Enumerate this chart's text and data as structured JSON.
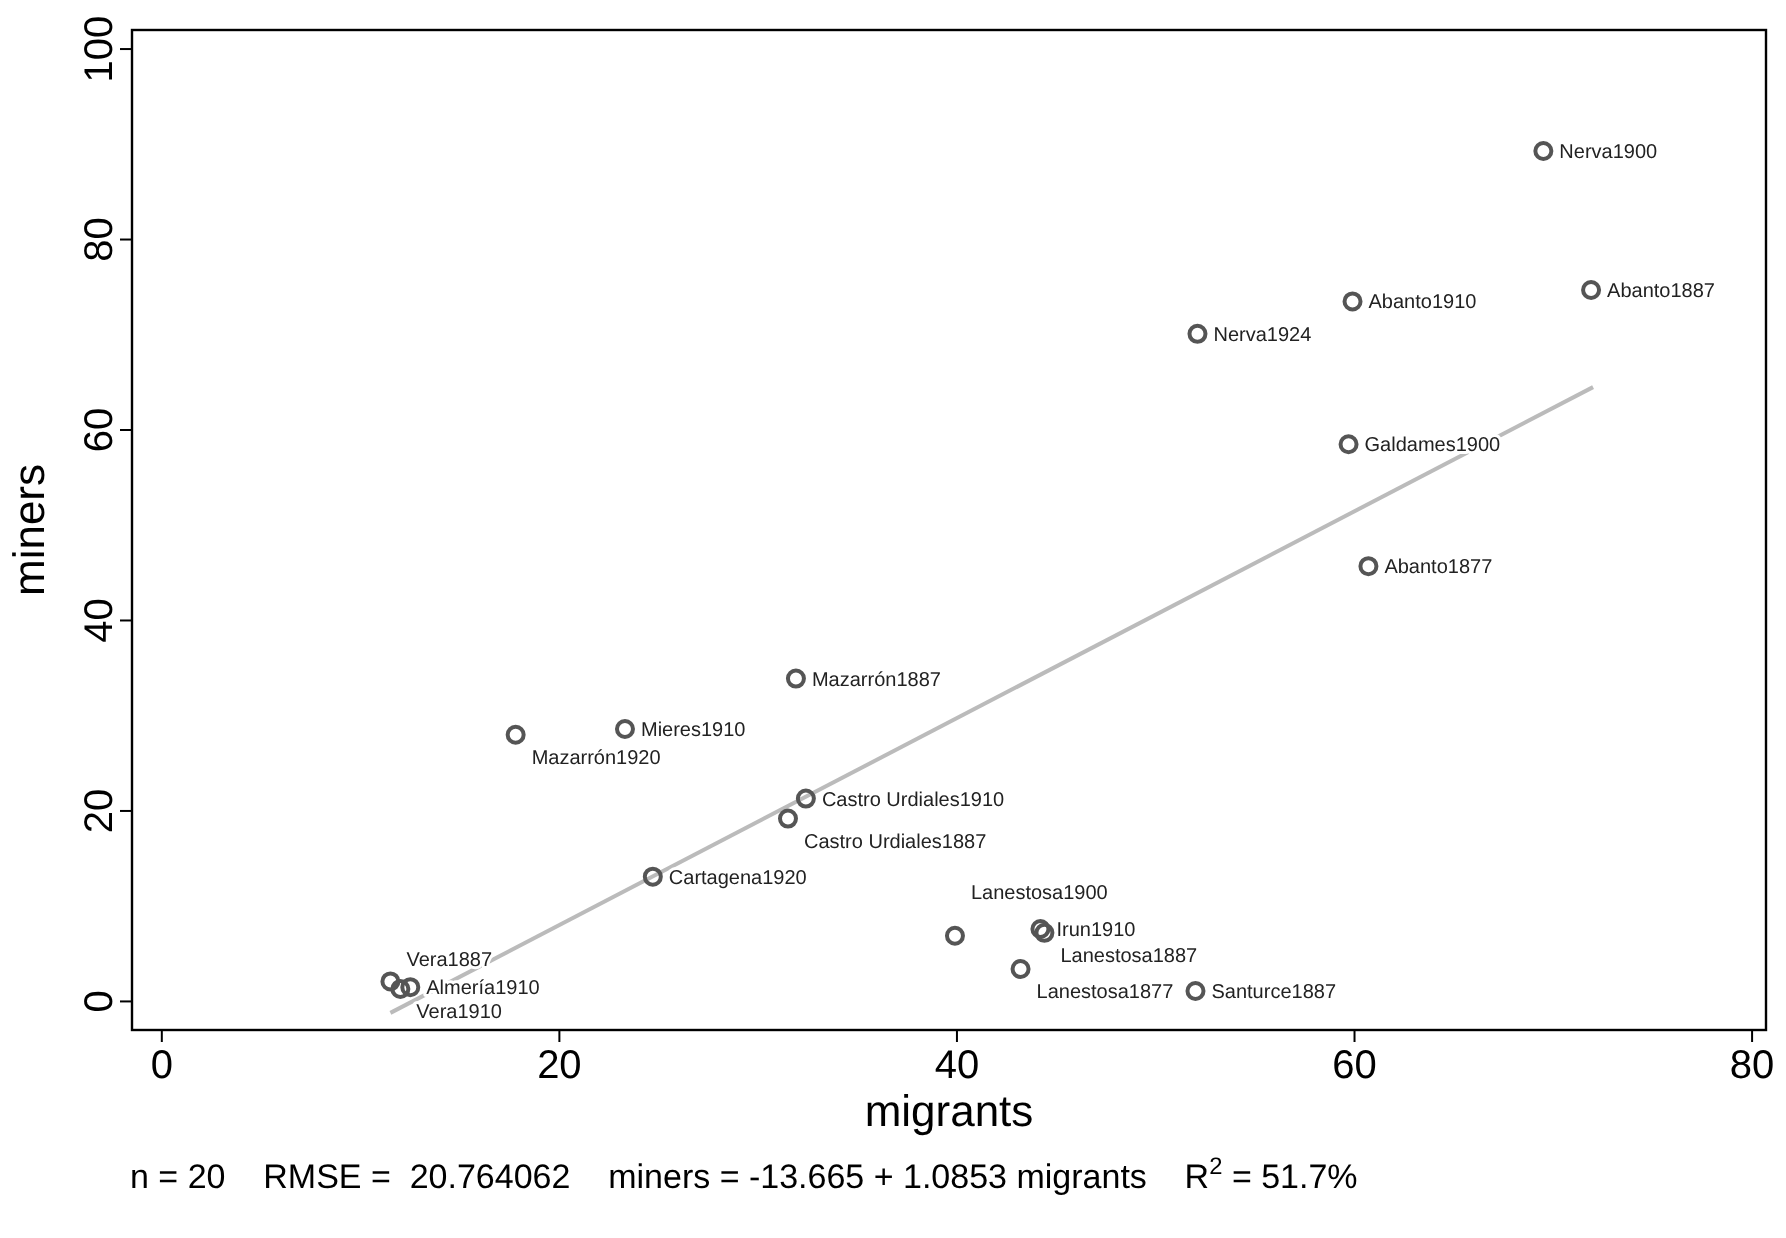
{
  "chart_data": {
    "type": "scatter",
    "xlabel": "migrants",
    "ylabel": "miners",
    "xlim": [
      -1.5,
      80.7
    ],
    "ylim": [
      -3,
      102
    ],
    "xticks": [
      0,
      20,
      40,
      60,
      80
    ],
    "yticks": [
      0,
      20,
      40,
      60,
      80,
      100
    ],
    "grid": false,
    "series": [
      {
        "color": "#555555",
        "marker": "circle",
        "x": [
          69.5,
          59.9,
          71.9,
          52.1,
          59.7,
          60.7,
          31.9,
          23.3,
          17.8,
          32.4,
          31.5,
          24.7,
          39.9,
          44.2,
          44.4,
          43.2,
          52.0,
          11.5,
          12.0,
          12.5
        ],
        "values": [
          89.3,
          73.5,
          74.7,
          70.1,
          58.5,
          45.7,
          33.9,
          28.6,
          28.0,
          21.3,
          19.2,
          13.1,
          6.9,
          7.6,
          7.2,
          3.4,
          1.1,
          2.1,
          1.3,
          1.5
        ]
      },
      {
        "type": "line",
        "color": "#bbbbbb",
        "marker": "none",
        "x": [
          11.5,
          72
        ],
        "values": [
          -1.2,
          64.5
        ]
      }
    ],
    "annotations": [
      {
        "text": "Nerva1900",
        "x": 69.5,
        "y": 89.3
      },
      {
        "text": "Abanto1910",
        "x": 59.9,
        "y": 73.5
      },
      {
        "text": "Abanto1887",
        "x": 71.9,
        "y": 74.7
      },
      {
        "text": "Nerva1924",
        "x": 52.1,
        "y": 70.1
      },
      {
        "text": "Galdames1900",
        "x": 59.7,
        "y": 58.5
      },
      {
        "text": "Abanto1877",
        "x": 60.7,
        "y": 45.7
      },
      {
        "text": "Mazarrón1887",
        "x": 31.9,
        "y": 33.9
      },
      {
        "text": "Mieres1910",
        "x": 23.3,
        "y": 28.6
      },
      {
        "text": "Mazarrón1920",
        "x": 17.8,
        "y": 28.0
      },
      {
        "text": "Castro Urdiales1910",
        "x": 32.4,
        "y": 21.3
      },
      {
        "text": "Castro Urdiales1887",
        "x": 31.5,
        "y": 19.2
      },
      {
        "text": "Cartagena1920",
        "x": 24.7,
        "y": 13.1
      },
      {
        "text": "Lanestosa1900",
        "x": 39.9,
        "y": 6.9
      },
      {
        "text": "Irun1910",
        "x": 44.2,
        "y": 7.6
      },
      {
        "text": "Lanestosa1887",
        "x": 44.4,
        "y": 7.2
      },
      {
        "text": "Lanestosa1877",
        "x": 43.2,
        "y": 3.4
      },
      {
        "text": "Santurce1887",
        "x": 52.0,
        "y": 1.1
      },
      {
        "text": "Vera1887",
        "x": 11.5,
        "y": 2.1
      },
      {
        "text": "Vera1910",
        "x": 12.0,
        "y": 1.3
      },
      {
        "text": "Almería1910",
        "x": 12.5,
        "y": 1.5
      },
      "n = 20    RMSE =  20.764062    miners = -13.665 + 1.0853 migrants    R$^{2}$ = 51.7%"
    ]
  }
}
